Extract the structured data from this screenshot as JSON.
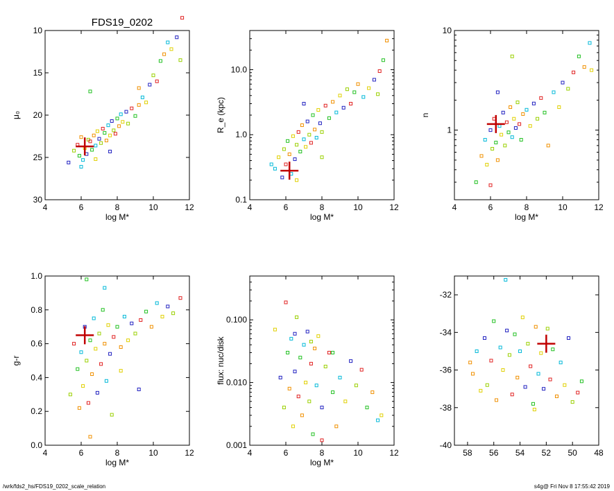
{
  "figure_title": "FDS19_0202",
  "footer": {
    "path": "/wrk/fds2_hs/FDS19_0202_scale_relation",
    "stamp": "s4g@  Fri Nov  8 17:55:42 2019"
  },
  "chart_data": [
    {
      "type": "scatter",
      "xlabel": "log M*",
      "ylabel": "μ₀",
      "xlim": [
        4,
        12
      ],
      "ylim": [
        30,
        10
      ],
      "scale": "linear-inverted",
      "xticks": [
        "4",
        "6",
        "8",
        "10",
        "12"
      ],
      "yticks": [
        "10",
        "15",
        "20",
        "25",
        "30"
      ],
      "highlight": {
        "x": 6.2,
        "y": 23.7
      },
      "points": [
        [
          5.3,
          25.6
        ],
        [
          5.6,
          24.2
        ],
        [
          5.8,
          23.5
        ],
        [
          5.9,
          24.8
        ],
        [
          6.0,
          22.6
        ],
        [
          6.1,
          25.3
        ],
        [
          6.2,
          23.9
        ],
        [
          6.3,
          24.6
        ],
        [
          6.4,
          22.9
        ],
        [
          6.5,
          23.1
        ],
        [
          6.6,
          24.1
        ],
        [
          6.7,
          22.4
        ],
        [
          6.8,
          23.6
        ],
        [
          6.9,
          21.9
        ],
        [
          7.0,
          22.8
        ],
        [
          7.1,
          23.3
        ],
        [
          7.2,
          21.6
        ],
        [
          7.3,
          22.1
        ],
        [
          7.4,
          23.0
        ],
        [
          7.5,
          21.2
        ],
        [
          7.6,
          22.4
        ],
        [
          7.7,
          20.7
        ],
        [
          7.8,
          21.8
        ],
        [
          7.9,
          22.2
        ],
        [
          8.0,
          20.4
        ],
        [
          8.1,
          21.3
        ],
        [
          8.2,
          19.9
        ],
        [
          8.3,
          20.8
        ],
        [
          8.5,
          19.6
        ],
        [
          8.6,
          21.0
        ],
        [
          8.8,
          19.2
        ],
        [
          9.0,
          20.1
        ],
        [
          9.2,
          18.8
        ],
        [
          9.4,
          17.9
        ],
        [
          9.6,
          18.5
        ],
        [
          9.8,
          16.4
        ],
        [
          10.0,
          15.3
        ],
        [
          10.2,
          16.0
        ],
        [
          10.4,
          13.6
        ],
        [
          10.6,
          12.8
        ],
        [
          10.8,
          11.4
        ],
        [
          11.0,
          12.2
        ],
        [
          11.3,
          10.8
        ],
        [
          11.5,
          13.5
        ],
        [
          11.6,
          8.5
        ],
        [
          6.5,
          17.2
        ],
        [
          9.2,
          16.8
        ],
        [
          6.0,
          26.1
        ],
        [
          6.8,
          25.2
        ],
        [
          7.6,
          24.3
        ]
      ]
    },
    {
      "type": "scatter",
      "xlabel": "log M*",
      "ylabel": "R_e (kpc)",
      "xlim": [
        4,
        12
      ],
      "ylim": [
        0.1,
        40
      ],
      "scale": "log",
      "xticks": [
        "4",
        "6",
        "8",
        "10",
        "12"
      ],
      "yticks": [
        "0.1",
        "1.0",
        "10.0"
      ],
      "highlight": {
        "x": 6.2,
        "y": 0.28
      },
      "points": [
        [
          5.4,
          0.3
        ],
        [
          5.6,
          0.45
        ],
        [
          5.8,
          0.22
        ],
        [
          5.9,
          0.6
        ],
        [
          6.0,
          0.35
        ],
        [
          6.1,
          0.8
        ],
        [
          6.2,
          0.5
        ],
        [
          6.3,
          0.25
        ],
        [
          6.4,
          0.95
        ],
        [
          6.5,
          0.42
        ],
        [
          6.6,
          0.7
        ],
        [
          6.7,
          1.1
        ],
        [
          6.8,
          0.55
        ],
        [
          6.9,
          1.4
        ],
        [
          7.0,
          0.85
        ],
        [
          7.1,
          0.65
        ],
        [
          7.2,
          1.6
        ],
        [
          7.3,
          1.0
        ],
        [
          7.4,
          0.75
        ],
        [
          7.5,
          2.0
        ],
        [
          7.6,
          1.2
        ],
        [
          7.7,
          0.9
        ],
        [
          7.8,
          2.4
        ],
        [
          7.9,
          1.5
        ],
        [
          8.0,
          1.1
        ],
        [
          8.2,
          2.8
        ],
        [
          8.4,
          1.8
        ],
        [
          8.6,
          3.2
        ],
        [
          8.8,
          2.2
        ],
        [
          9.0,
          4.0
        ],
        [
          9.2,
          2.6
        ],
        [
          9.4,
          5.0
        ],
        [
          9.6,
          3.0
        ],
        [
          9.8,
          4.5
        ],
        [
          10.0,
          6.0
        ],
        [
          10.3,
          3.8
        ],
        [
          10.6,
          5.2
        ],
        [
          10.9,
          7.0
        ],
        [
          11.1,
          4.2
        ],
        [
          11.2,
          9.5
        ],
        [
          11.4,
          14.0
        ],
        [
          11.6,
          28.0
        ],
        [
          5.2,
          0.35
        ],
        [
          6.6,
          0.2
        ],
        [
          7.0,
          3.0
        ],
        [
          8.0,
          0.45
        ]
      ]
    },
    {
      "type": "scatter",
      "xlabel": "log M*",
      "ylabel": "n",
      "xlim": [
        4,
        12
      ],
      "ylim": [
        0.2,
        10
      ],
      "scale": "log",
      "xticks": [
        "4",
        "6",
        "8",
        "10",
        "12"
      ],
      "yticks": [
        "1",
        "10"
      ],
      "highlight": {
        "x": 6.3,
        "y": 1.15
      },
      "points": [
        [
          5.2,
          0.3
        ],
        [
          5.5,
          0.55
        ],
        [
          5.7,
          0.8
        ],
        [
          5.8,
          0.45
        ],
        [
          6.0,
          1.0
        ],
        [
          6.1,
          0.65
        ],
        [
          6.2,
          1.3
        ],
        [
          6.3,
          0.75
        ],
        [
          6.4,
          0.5
        ],
        [
          6.5,
          1.1
        ],
        [
          6.6,
          0.9
        ],
        [
          6.7,
          1.5
        ],
        [
          6.8,
          0.7
        ],
        [
          6.9,
          1.2
        ],
        [
          7.0,
          0.95
        ],
        [
          7.1,
          1.7
        ],
        [
          7.2,
          0.85
        ],
        [
          7.3,
          1.3
        ],
        [
          7.4,
          1.05
        ],
        [
          7.5,
          1.9
        ],
        [
          7.6,
          1.15
        ],
        [
          7.7,
          0.8
        ],
        [
          7.8,
          1.45
        ],
        [
          8.0,
          1.6
        ],
        [
          8.2,
          1.1
        ],
        [
          8.4,
          1.85
        ],
        [
          8.6,
          1.3
        ],
        [
          8.8,
          2.1
        ],
        [
          9.0,
          1.5
        ],
        [
          9.2,
          0.7
        ],
        [
          9.5,
          2.4
        ],
        [
          9.8,
          1.7
        ],
        [
          10.0,
          3.0
        ],
        [
          10.3,
          2.6
        ],
        [
          10.6,
          3.8
        ],
        [
          10.9,
          5.5
        ],
        [
          11.2,
          4.3
        ],
        [
          11.5,
          7.5
        ],
        [
          11.6,
          4.0
        ],
        [
          6.4,
          2.4
        ],
        [
          7.2,
          5.5
        ],
        [
          6.0,
          0.28
        ]
      ]
    },
    {
      "type": "scatter",
      "xlabel": "log M*",
      "ylabel": "g-r",
      "xlim": [
        4,
        12
      ],
      "ylim": [
        0.0,
        1.0
      ],
      "scale": "linear",
      "xticks": [
        "4",
        "6",
        "8",
        "10",
        "12"
      ],
      "yticks": [
        "0.0",
        "0.2",
        "0.4",
        "0.6",
        "0.8",
        "1.0"
      ],
      "highlight": {
        "x": 6.2,
        "y": 0.65
      },
      "points": [
        [
          5.4,
          0.3
        ],
        [
          5.6,
          0.6
        ],
        [
          5.8,
          0.45
        ],
        [
          5.9,
          0.22
        ],
        [
          6.0,
          0.55
        ],
        [
          6.1,
          0.35
        ],
        [
          6.2,
          0.7
        ],
        [
          6.3,
          0.5
        ],
        [
          6.4,
          0.25
        ],
        [
          6.5,
          0.62
        ],
        [
          6.6,
          0.42
        ],
        [
          6.7,
          0.75
        ],
        [
          6.8,
          0.57
        ],
        [
          6.9,
          0.31
        ],
        [
          7.0,
          0.66
        ],
        [
          7.1,
          0.48
        ],
        [
          7.2,
          0.8
        ],
        [
          7.3,
          0.6
        ],
        [
          7.4,
          0.38
        ],
        [
          7.5,
          0.71
        ],
        [
          7.6,
          0.54
        ],
        [
          7.7,
          0.18
        ],
        [
          7.8,
          0.64
        ],
        [
          8.0,
          0.7
        ],
        [
          8.2,
          0.58
        ],
        [
          8.4,
          0.76
        ],
        [
          8.6,
          0.62
        ],
        [
          8.8,
          0.72
        ],
        [
          9.0,
          0.66
        ],
        [
          9.3,
          0.74
        ],
        [
          9.6,
          0.79
        ],
        [
          9.9,
          0.7
        ],
        [
          10.2,
          0.84
        ],
        [
          10.5,
          0.76
        ],
        [
          10.8,
          0.82
        ],
        [
          11.1,
          0.78
        ],
        [
          11.5,
          0.87
        ],
        [
          6.3,
          0.98
        ],
        [
          6.5,
          0.05
        ],
        [
          7.3,
          0.93
        ],
        [
          8.2,
          0.44
        ],
        [
          9.2,
          0.33
        ]
      ]
    },
    {
      "type": "scatter",
      "xlabel": "log M*",
      "ylabel": "flux: nuc/disk",
      "xlim": [
        4,
        12
      ],
      "ylim": [
        0.001,
        0.5
      ],
      "scale": "log",
      "xticks": [
        "4",
        "6",
        "8",
        "10",
        "12"
      ],
      "yticks": [
        "0.001",
        "0.010",
        "0.100"
      ],
      "points": [
        [
          5.4,
          0.07
        ],
        [
          5.7,
          0.012
        ],
        [
          5.9,
          0.004
        ],
        [
          6.0,
          0.19
        ],
        [
          6.1,
          0.03
        ],
        [
          6.2,
          0.008
        ],
        [
          6.3,
          0.05
        ],
        [
          6.4,
          0.002
        ],
        [
          6.5,
          0.015
        ],
        [
          6.6,
          0.11
        ],
        [
          6.7,
          0.006
        ],
        [
          6.8,
          0.025
        ],
        [
          6.9,
          0.003
        ],
        [
          7.0,
          0.04
        ],
        [
          7.1,
          0.01
        ],
        [
          7.2,
          0.065
        ],
        [
          7.3,
          0.005
        ],
        [
          7.4,
          0.02
        ],
        [
          7.5,
          0.0015
        ],
        [
          7.6,
          0.035
        ],
        [
          7.7,
          0.009
        ],
        [
          7.8,
          0.055
        ],
        [
          8.0,
          0.004
        ],
        [
          8.2,
          0.018
        ],
        [
          8.4,
          0.03
        ],
        [
          8.6,
          0.007
        ],
        [
          8.8,
          0.002
        ],
        [
          9.0,
          0.012
        ],
        [
          9.3,
          0.005
        ],
        [
          9.6,
          0.022
        ],
        [
          9.9,
          0.009
        ],
        [
          10.2,
          0.016
        ],
        [
          10.5,
          0.004
        ],
        [
          10.8,
          0.007
        ],
        [
          11.1,
          0.0025
        ],
        [
          11.3,
          0.003
        ],
        [
          6.5,
          0.06
        ],
        [
          7.4,
          0.045
        ],
        [
          8.0,
          0.0012
        ],
        [
          8.6,
          0.03
        ]
      ]
    },
    {
      "type": "scatter",
      "xlabel": "",
      "ylabel": "",
      "xlim": [
        59,
        48
      ],
      "ylim": [
        -40,
        -31
      ],
      "scale": "linear",
      "xticks": [
        "58",
        "56",
        "54",
        "52",
        "50",
        "48"
      ],
      "yticks": [
        "-32",
        "-34",
        "-36",
        "-38",
        "-40"
      ],
      "highlight": {
        "x": 52.0,
        "y": -34.6
      },
      "points": [
        [
          57.6,
          -36.2
        ],
        [
          57.3,
          -35.0
        ],
        [
          57.0,
          -37.1
        ],
        [
          56.7,
          -34.3
        ],
        [
          56.5,
          -36.8
        ],
        [
          56.2,
          -35.5
        ],
        [
          56.0,
          -33.4
        ],
        [
          55.8,
          -37.6
        ],
        [
          55.5,
          -34.8
        ],
        [
          55.3,
          -36.0
        ],
        [
          55.0,
          -33.9
        ],
        [
          54.8,
          -35.2
        ],
        [
          54.6,
          -37.3
        ],
        [
          54.4,
          -34.1
        ],
        [
          54.2,
          -36.4
        ],
        [
          54.0,
          -35.0
        ],
        [
          53.8,
          -33.2
        ],
        [
          53.6,
          -36.9
        ],
        [
          53.4,
          -34.6
        ],
        [
          53.2,
          -35.8
        ],
        [
          53.0,
          -37.8
        ],
        [
          52.8,
          -33.7
        ],
        [
          52.6,
          -36.2
        ],
        [
          52.4,
          -35.1
        ],
        [
          52.2,
          -37.0
        ],
        [
          51.9,
          -33.8
        ],
        [
          51.7,
          -36.5
        ],
        [
          51.5,
          -34.9
        ],
        [
          51.2,
          -37.4
        ],
        [
          50.9,
          -35.6
        ],
        [
          50.6,
          -36.8
        ],
        [
          50.3,
          -34.3
        ],
        [
          50.0,
          -37.7
        ],
        [
          49.6,
          -37.2
        ],
        [
          49.3,
          -36.6
        ],
        [
          57.8,
          -35.6
        ],
        [
          55.1,
          -31.2
        ],
        [
          52.9,
          -38.1
        ]
      ]
    }
  ]
}
